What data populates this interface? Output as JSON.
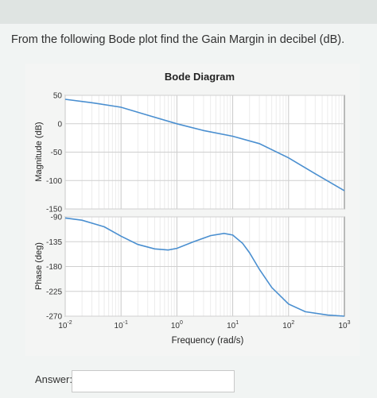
{
  "question": {
    "text": "From the following Bode plot find the Gain Margin in decibel (dB)."
  },
  "answer": {
    "label": "Answer:",
    "value": ""
  },
  "chart_data": [
    {
      "type": "line",
      "title": "Bode Diagram",
      "xlabel": "Frequency  (rad/s)",
      "ylabel": "Magnitude (dB)",
      "xscale": "log",
      "xlim": [
        0.01,
        1000
      ],
      "ylim": [
        -150,
        50
      ],
      "yticks": [
        "50",
        "0",
        "-50",
        "-100",
        "-150"
      ],
      "grid": true,
      "x": [
        0.01,
        0.03,
        0.1,
        0.3,
        1,
        3,
        10,
        30,
        100,
        300,
        1000
      ],
      "y": [
        43,
        37,
        29,
        15,
        0,
        -12,
        -22,
        -35,
        -60,
        -88,
        -118
      ],
      "color": "#4a8fd0"
    },
    {
      "type": "line",
      "title": "",
      "xlabel": "Frequency  (rad/s)",
      "ylabel": "Phase (deg)",
      "xscale": "log",
      "xlim": [
        0.01,
        1000
      ],
      "ylim": [
        -270,
        -90
      ],
      "yticks": [
        "-90",
        "-135",
        "-180",
        "-225",
        "-270"
      ],
      "xticks": [
        {
          "base": "10",
          "exp": "-2"
        },
        {
          "base": "10",
          "exp": "-1"
        },
        {
          "base": "10",
          "exp": "0"
        },
        {
          "base": "10",
          "exp": "1"
        },
        {
          "base": "10",
          "exp": "2"
        },
        {
          "base": "10",
          "exp": "3"
        }
      ],
      "grid": true,
      "x": [
        0.01,
        0.02,
        0.05,
        0.1,
        0.2,
        0.4,
        0.7,
        1,
        2,
        4,
        7,
        10,
        15,
        20,
        30,
        50,
        100,
        200,
        500,
        1000
      ],
      "y": [
        -92,
        -96,
        -108,
        -125,
        -140,
        -148,
        -150,
        -147,
        -135,
        -124,
        -120,
        -123,
        -138,
        -155,
        -185,
        -218,
        -248,
        -262,
        -268,
        -270
      ],
      "color": "#4a8fd0"
    }
  ]
}
